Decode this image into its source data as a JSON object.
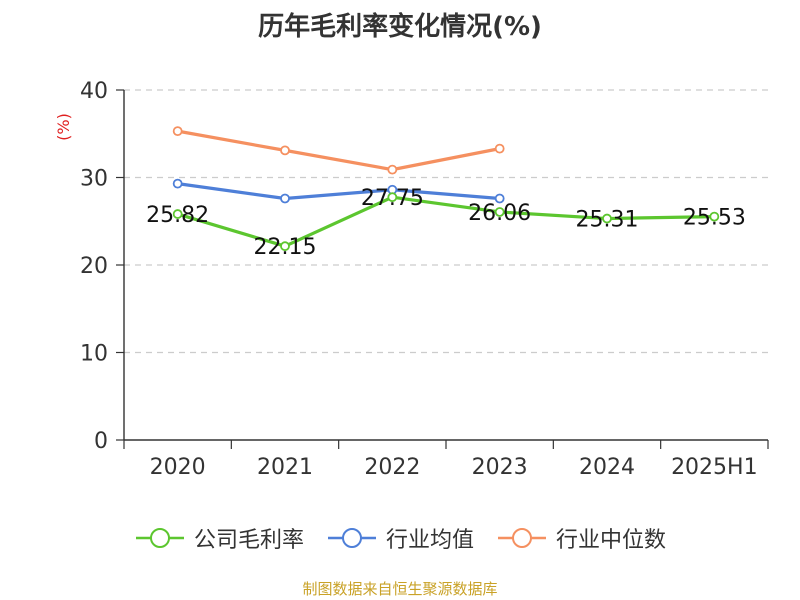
{
  "title": "历年毛利率变化情况(%)",
  "source": "制图数据来自恒生聚源数据库",
  "chart_data": {
    "type": "line",
    "title": "历年毛利率变化情况(%)",
    "ylabel": "(%)",
    "xlabel": "",
    "categories": [
      "2020",
      "2021",
      "2022",
      "2023",
      "2024",
      "2025H1"
    ],
    "ylim": [
      0,
      40
    ],
    "yticks": [
      0,
      10,
      20,
      30,
      40
    ],
    "grid": true,
    "legend_position": "bottom",
    "series": [
      {
        "name": "公司毛利率",
        "color": "#5cc62f",
        "values": [
          25.82,
          22.15,
          27.75,
          26.06,
          25.31,
          25.53
        ],
        "labels": [
          "25.82",
          "22.15",
          "27.75",
          "26.06",
          "25.31",
          "25.53"
        ]
      },
      {
        "name": "行业均值",
        "color": "#4e7fd8",
        "values": [
          29.3,
          27.6,
          28.6,
          27.6,
          null,
          null
        ]
      },
      {
        "name": "行业中位数",
        "color": "#f59060",
        "values": [
          35.3,
          33.1,
          30.9,
          33.3,
          null,
          null
        ]
      }
    ]
  }
}
